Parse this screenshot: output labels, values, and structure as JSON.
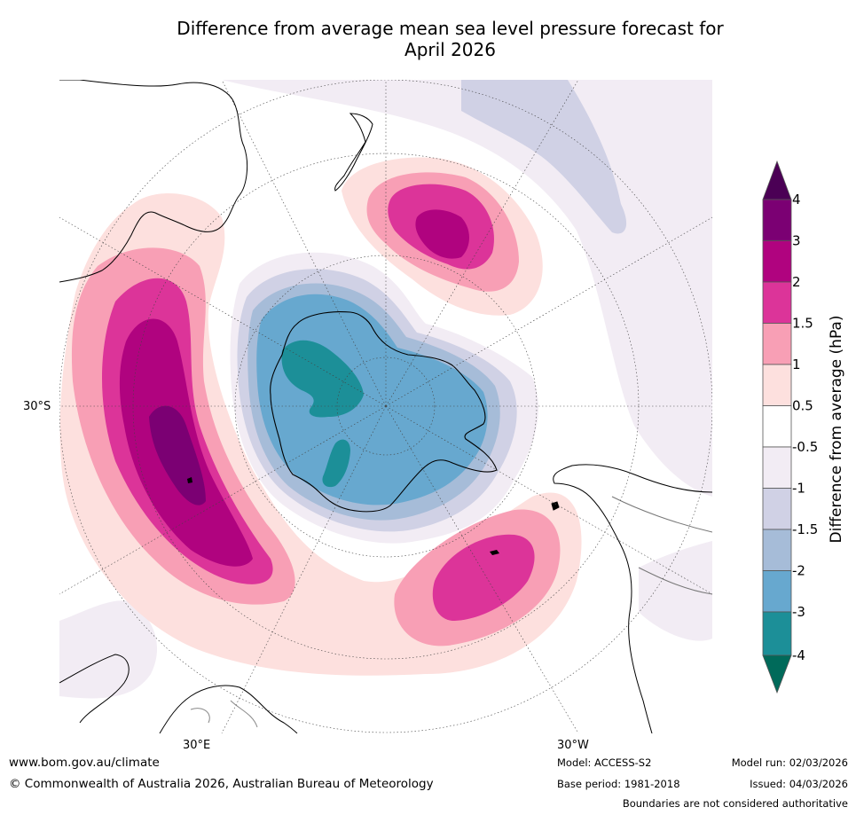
{
  "title_line1": "Difference from average mean sea level pressure forecast for",
  "title_line2": "April 2026",
  "map": {
    "lat_label": "30°S",
    "lon_label_left": "30°E",
    "lon_label_right": "30°W"
  },
  "colorbar": {
    "label": "Difference from average (hPa)",
    "ticks": [
      "4",
      "3",
      "2",
      "1.5",
      "1",
      "0.5",
      "-0.5",
      "-1",
      "-1.5",
      "-2",
      "-3",
      "-4"
    ],
    "bins": [
      {
        "range": "above 4",
        "color": "#4b0055"
      },
      {
        "range": "3 to 4",
        "color": "#7b0073"
      },
      {
        "range": "2 to 3",
        "color": "#b0037f"
      },
      {
        "range": "1.5 to 2",
        "color": "#dc3499"
      },
      {
        "range": "1 to 1.5",
        "color": "#f89fb5"
      },
      {
        "range": "0.5 to 1",
        "color": "#fde0de"
      },
      {
        "range": "-0.5 to 0.5",
        "color": "#ffffff"
      },
      {
        "range": "-1 to -0.5",
        "color": "#f2ecf4"
      },
      {
        "range": "-1.5 to -1",
        "color": "#d0d1e5"
      },
      {
        "range": "-2 to -1.5",
        "color": "#a6bcd8"
      },
      {
        "range": "-3 to -2",
        "color": "#67a8cf"
      },
      {
        "range": "-4 to -3",
        "color": "#1c8f98"
      },
      {
        "range": "below -4",
        "color": "#006a5a"
      }
    ]
  },
  "footer": {
    "website": "www.bom.gov.au/climate",
    "copyright": "© Commonwealth of Australia 2026, Australian Bureau of Meteorology",
    "model": "Model: ACCESS-S2",
    "base_period": "Base period: 1981-2018",
    "model_run": "Model run: 02/03/2026",
    "issued": "Issued: 04/03/2026",
    "disclaimer": "Boundaries are not considered authoritative"
  }
}
